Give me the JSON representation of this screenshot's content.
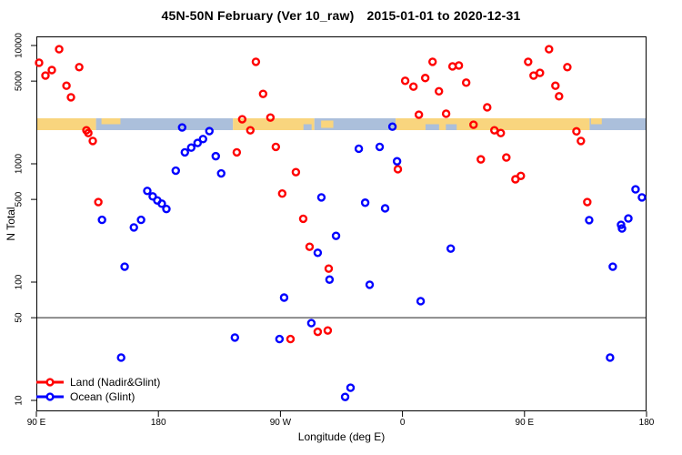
{
  "title": {
    "main": "45N-50N February (Ver 10_raw)",
    "dates": "2015-01-01 to 2020-12-31"
  },
  "chart_data": {
    "type": "scatter",
    "title": "45N-50N February (Ver 10_raw)  2015-01-01 to 2020-12-31",
    "xlabel": "Longitude (deg E)",
    "ylabel": "N Total",
    "x_axis": {
      "tick_labels": [
        "90 E",
        "180",
        "90 W",
        "0",
        "90 E",
        "180"
      ],
      "tick_positions_deg": [
        0,
        90,
        180,
        270,
        360,
        450
      ],
      "range_deg": [
        0,
        450
      ],
      "note": "axis starts at 90E and runs eastward through the dateline and Greenwich back to 180"
    },
    "y_axis": {
      "scale": "log10",
      "tick_values": [
        10,
        50,
        100,
        500,
        1000,
        5000,
        10000
      ],
      "tick_labels": [
        "10",
        "50",
        "100",
        "500",
        "1000",
        "5000",
        "10000"
      ],
      "range": [
        8,
        12000
      ]
    },
    "reference_line_y": 50,
    "series": [
      {
        "name": "Land (Nadir&Glint)",
        "color": "#FF0000",
        "marker": "open-circle",
        "points": [
          [
            2.0,
            7150
          ],
          [
            6.7,
            5570
          ],
          [
            11.4,
            6200
          ],
          [
            16.8,
            9300
          ],
          [
            22.2,
            4570
          ],
          [
            25.5,
            3650
          ],
          [
            31.6,
            6560
          ],
          [
            36.9,
            1920
          ],
          [
            38.3,
            1820
          ],
          [
            41.6,
            1560
          ],
          [
            45.7,
            475
          ],
          [
            147.8,
            1250
          ],
          [
            151.8,
            2380
          ],
          [
            157.8,
            1920
          ],
          [
            161.9,
            7280
          ],
          [
            167.2,
            3900
          ],
          [
            172.6,
            2460
          ],
          [
            176.6,
            1390
          ],
          [
            181.3,
            560
          ],
          [
            187.4,
            33
          ],
          [
            191.4,
            850
          ],
          [
            196.8,
            343
          ],
          [
            201.5,
            199
          ],
          [
            207.5,
            38
          ],
          [
            214.9,
            39
          ],
          [
            215.6,
            130
          ],
          [
            266.6,
            900
          ],
          [
            272.0,
            5030
          ],
          [
            278.1,
            4490
          ],
          [
            282.1,
            2600
          ],
          [
            286.8,
            5310
          ],
          [
            292.2,
            7280
          ],
          [
            296.9,
            4100
          ],
          [
            302.2,
            2650
          ],
          [
            306.9,
            6660
          ],
          [
            311.6,
            6780
          ],
          [
            317.0,
            4850
          ],
          [
            322.4,
            2140
          ],
          [
            327.8,
            1090
          ],
          [
            332.5,
            3000
          ],
          [
            337.8,
            1920
          ],
          [
            342.5,
            1820
          ],
          [
            346.6,
            1130
          ],
          [
            353.3,
            740
          ],
          [
            357.3,
            790
          ],
          [
            362.7,
            7280
          ],
          [
            366.7,
            5570
          ],
          [
            371.4,
            5870
          ],
          [
            378.1,
            9300
          ],
          [
            382.8,
            4570
          ],
          [
            385.5,
            3720
          ],
          [
            391.6,
            6560
          ],
          [
            398.3,
            1880
          ],
          [
            401.6,
            1560
          ],
          [
            406.3,
            475
          ]
        ]
      },
      {
        "name": "Ocean (Glint)",
        "color": "#0000FF",
        "marker": "open-circle",
        "points": [
          [
            48.4,
            336
          ],
          [
            62.5,
            23
          ],
          [
            65.1,
            135
          ],
          [
            71.9,
            290
          ],
          [
            77.2,
            336
          ],
          [
            81.8,
            590
          ],
          [
            85.8,
            530
          ],
          [
            89.2,
            490
          ],
          [
            92.5,
            460
          ],
          [
            95.9,
            415
          ],
          [
            102.8,
            875
          ],
          [
            107.5,
            2030
          ],
          [
            109.5,
            1250
          ],
          [
            114.2,
            1370
          ],
          [
            118.9,
            1500
          ],
          [
            122.9,
            1620
          ],
          [
            127.6,
            1890
          ],
          [
            132.3,
            1160
          ],
          [
            136.3,
            830
          ],
          [
            146.4,
            34
          ],
          [
            179.3,
            33
          ],
          [
            182.7,
            74
          ],
          [
            202.8,
            45
          ],
          [
            207.5,
            177
          ],
          [
            210.2,
            520
          ],
          [
            216.2,
            105
          ],
          [
            221.0,
            246
          ],
          [
            227.7,
            10.7
          ],
          [
            231.7,
            12.8
          ],
          [
            237.8,
            1340
          ],
          [
            242.5,
            469
          ],
          [
            245.8,
            95
          ],
          [
            253.2,
            1390
          ],
          [
            257.2,
            420
          ],
          [
            262.6,
            2060
          ],
          [
            266.0,
            1050
          ],
          [
            283.4,
            69
          ],
          [
            305.6,
            192
          ],
          [
            407.7,
            334
          ],
          [
            423.1,
            23
          ],
          [
            425.1,
            135
          ],
          [
            431.2,
            305
          ],
          [
            431.9,
            284
          ],
          [
            436.6,
            345
          ],
          [
            441.9,
            608
          ],
          [
            446.6,
            520
          ]
        ]
      }
    ],
    "latitude_band_map": {
      "description": "horizontal land/ocean strip for the 45N-50N latitude band, drawn across the plot at N between about 2300 and 2900",
      "land_color": "#F9D57E",
      "ocean_color": "#ABBFDB",
      "segments": [
        {
          "type": "land",
          "from_deg": 0,
          "to_deg": 44
        },
        {
          "type": "ocean",
          "from_deg": 44,
          "to_deg": 145
        },
        {
          "type": "land",
          "from_deg": 145,
          "to_deg": 205
        },
        {
          "type": "ocean",
          "from_deg": 205,
          "to_deg": 265
        },
        {
          "type": "land",
          "from_deg": 265,
          "to_deg": 408
        },
        {
          "type": "ocean",
          "from_deg": 408,
          "to_deg": 450
        }
      ],
      "patches": [
        {
          "type": "land",
          "from_deg": 48,
          "to_deg": 62,
          "slice": "top"
        },
        {
          "type": "ocean",
          "from_deg": 197,
          "to_deg": 203,
          "slice": "bottom"
        },
        {
          "type": "land",
          "from_deg": 210,
          "to_deg": 219,
          "slice": "mid"
        },
        {
          "type": "ocean",
          "from_deg": 287,
          "to_deg": 297,
          "slice": "bottom"
        },
        {
          "type": "ocean",
          "from_deg": 302,
          "to_deg": 310,
          "slice": "bottom"
        },
        {
          "type": "land",
          "from_deg": 409,
          "to_deg": 417,
          "slice": "top"
        }
      ]
    },
    "legend_position": "bottom-left"
  }
}
